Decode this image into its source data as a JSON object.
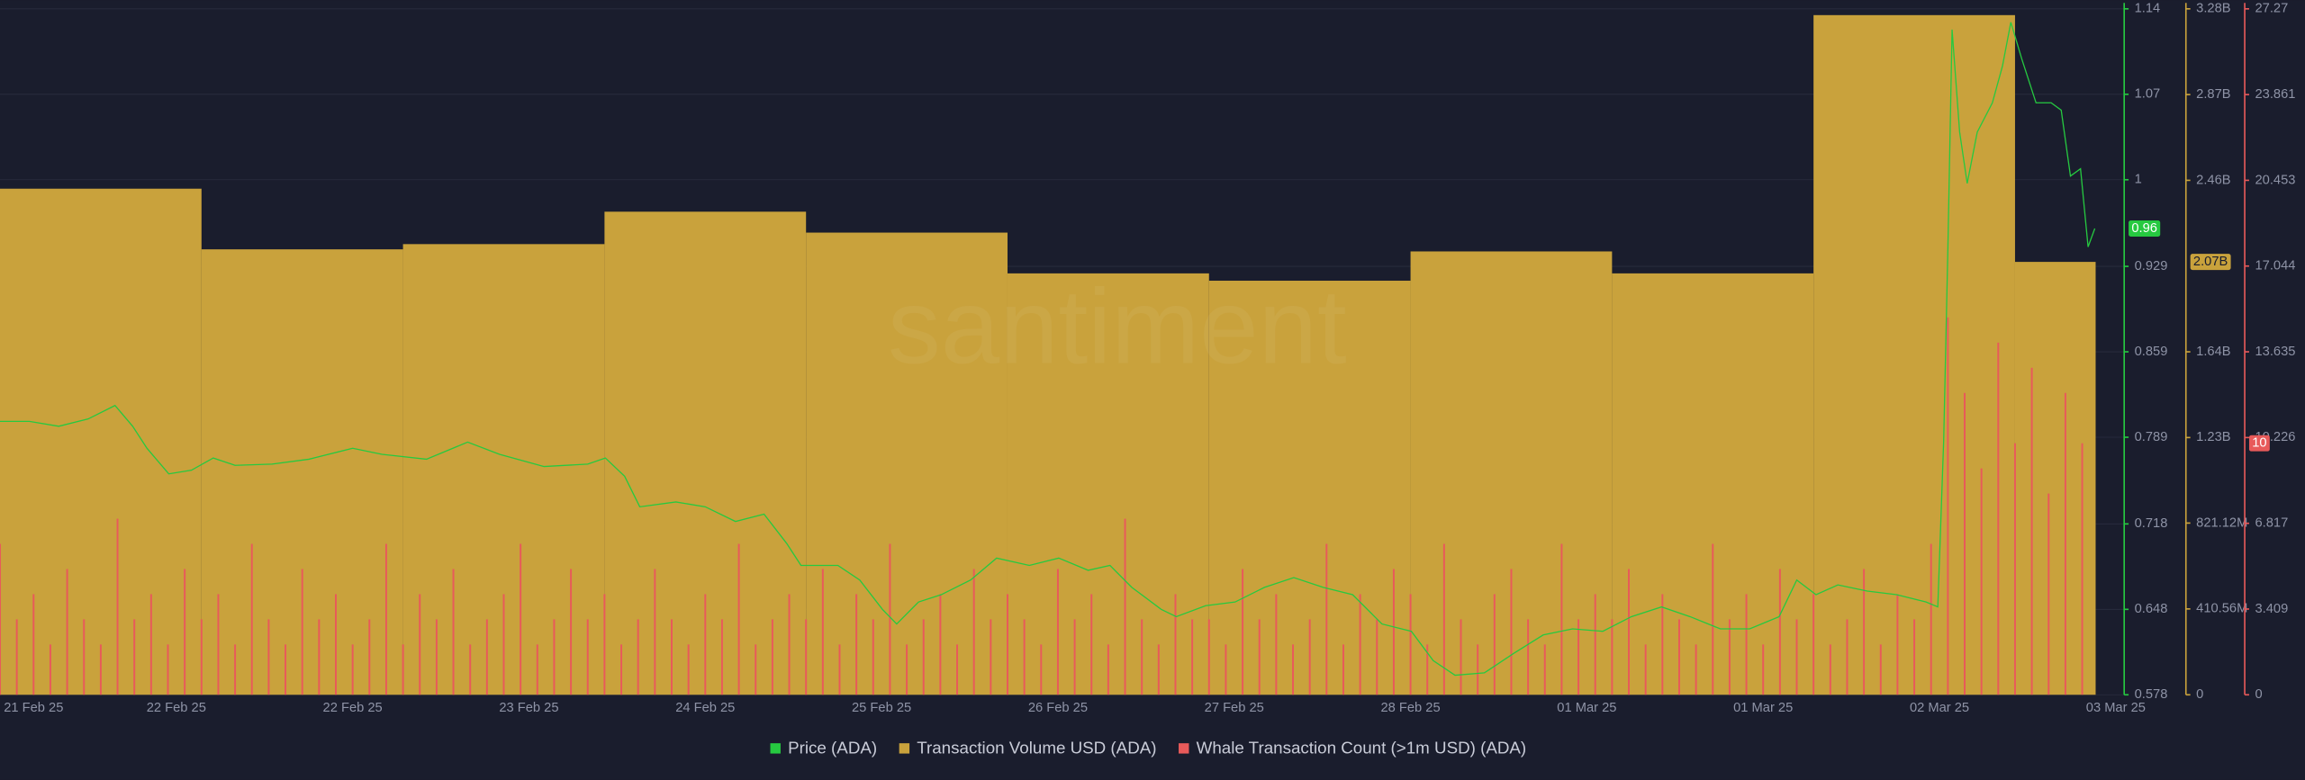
{
  "chart_data": {
    "type": "combo",
    "watermark": "santiment",
    "xlim": [
      0,
      253
    ],
    "xticks": [
      {
        "value": 4,
        "label": "21 Feb 25"
      },
      {
        "value": 21,
        "label": "22 Feb 25"
      },
      {
        "value": 42,
        "label": "22 Feb 25"
      },
      {
        "value": 63,
        "label": "23 Feb 25"
      },
      {
        "value": 84,
        "label": "24 Feb 25"
      },
      {
        "value": 105,
        "label": "25 Feb 25"
      },
      {
        "value": 126,
        "label": "26 Feb 25"
      },
      {
        "value": 147,
        "label": "27 Feb 25"
      },
      {
        "value": 168,
        "label": "28 Feb 25"
      },
      {
        "value": 189,
        "label": "01 Mar 25"
      },
      {
        "value": 210,
        "label": "01 Mar 25"
      },
      {
        "value": 231,
        "label": "02 Mar 25"
      },
      {
        "value": 252,
        "label": "03 Mar 25"
      }
    ],
    "ylim": [
      0.578,
      1.14
    ],
    "yticks": [
      0.578,
      0.648,
      0.718,
      0.789,
      0.859,
      0.929,
      1,
      1.07,
      1.14
    ],
    "y2lim": [
      0,
      3280000000
    ],
    "y2ticks": [
      0,
      {
        "value": 410560000,
        "label": "410.56M"
      },
      {
        "value": 821120000,
        "label": "821.12M"
      },
      {
        "value": 1230000000,
        "label": "1.23B"
      },
      {
        "value": 1640000000,
        "label": "1.64B"
      },
      {
        "value": 2460000000,
        "label": "2.46B"
      },
      {
        "value": 2870000000,
        "label": "2.87B"
      },
      {
        "value": 3280000000,
        "label": "3.28B"
      }
    ],
    "y3lim": [
      0,
      27.27
    ],
    "y3ticks": [
      0,
      3.409,
      6.817,
      10.226,
      13.635,
      17.044,
      20.453,
      23.861,
      27.27
    ],
    "grid": true,
    "series": [
      {
        "name": "Transaction Volume USD (ADA)",
        "type": "histogram",
        "axis": "y2",
        "color": "#c9a23c",
        "bins": [
          0,
          24,
          48,
          72,
          96,
          120,
          144,
          168,
          192,
          216,
          240,
          249.6
        ],
        "values": [
          2420000000,
          2130000000,
          2155000000,
          2310000000,
          2210000000,
          2015000000,
          1980000000,
          2120000000,
          2015000000,
          3250000000,
          2070000000
        ],
        "current": {
          "value": 2070000000,
          "label": "2.07B"
        }
      },
      {
        "name": "Whale Transaction Count (>1m USD) (ADA)",
        "type": "bar",
        "axis": "y3",
        "color": "#e85a5a",
        "x": [
          0,
          2,
          4,
          6,
          8,
          10,
          12,
          14,
          16,
          18,
          20,
          22,
          24,
          26,
          28,
          30,
          32,
          34,
          36,
          38,
          40,
          42,
          44,
          46,
          48,
          50,
          52,
          54,
          56,
          58,
          60,
          62,
          64,
          66,
          68,
          70,
          72,
          74,
          76,
          78,
          80,
          82,
          84,
          86,
          88,
          90,
          92,
          94,
          96,
          98,
          100,
          102,
          104,
          106,
          108,
          110,
          112,
          114,
          116,
          118,
          120,
          122,
          124,
          126,
          128,
          130,
          132,
          134,
          136,
          138,
          140,
          142,
          144,
          146,
          148,
          150,
          152,
          154,
          156,
          158,
          160,
          162,
          164,
          166,
          168,
          170,
          172,
          174,
          176,
          178,
          180,
          182,
          184,
          186,
          188,
          190,
          192,
          194,
          196,
          198,
          200,
          202,
          204,
          206,
          208,
          210,
          212,
          214,
          216,
          218,
          220,
          222,
          224,
          226,
          228,
          230,
          232,
          234,
          236,
          238,
          240,
          242,
          244,
          246,
          248
        ],
        "values": [
          6,
          3,
          4,
          2,
          5,
          3,
          2,
          7,
          3,
          4,
          2,
          5,
          3,
          4,
          2,
          6,
          3,
          2,
          5,
          3,
          4,
          2,
          3,
          6,
          2,
          4,
          3,
          5,
          2,
          3,
          4,
          6,
          2,
          3,
          5,
          3,
          4,
          2,
          3,
          5,
          3,
          2,
          4,
          3,
          6,
          2,
          3,
          4,
          3,
          5,
          2,
          4,
          3,
          6,
          2,
          3,
          4,
          2,
          5,
          3,
          4,
          3,
          2,
          5,
          3,
          4,
          2,
          7,
          3,
          2,
          4,
          3,
          3,
          2,
          5,
          3,
          4,
          2,
          3,
          6,
          2,
          4,
          3,
          5,
          4,
          2,
          6,
          3,
          2,
          4,
          5,
          3,
          2,
          6,
          3,
          4,
          3,
          5,
          2,
          4,
          3,
          2,
          6,
          3,
          4,
          2,
          5,
          3,
          4,
          2,
          3,
          5,
          2,
          4,
          3,
          6,
          15,
          12,
          9,
          14,
          10,
          13,
          8,
          12,
          10
        ],
        "current": 10
      },
      {
        "name": "Price (ADA)",
        "type": "line",
        "axis": "y",
        "color": "#26c940",
        "x": [
          0,
          3.5,
          7,
          10.5,
          13.7,
          15.8,
          17.5,
          20.1,
          22.8,
          25.4,
          28,
          32.4,
          36.8,
          42,
          45.5,
          50.8,
          55.7,
          59.5,
          64.8,
          70,
          72.1,
          74.4,
          76.2,
          80.5,
          84,
          87.6,
          91,
          93.7,
          95.4,
          99.8,
          102.4,
          105.1,
          106.8,
          109.4,
          112.1,
          115.6,
          118.7,
          122.6,
          126.1,
          129.6,
          132.2,
          134.8,
          138.3,
          140.1,
          143.6,
          147.1,
          150.6,
          154.1,
          157.6,
          161.1,
          164.6,
          168.1,
          170.7,
          173.3,
          176.8,
          180.3,
          183.8,
          187.3,
          190.9,
          194.3,
          197.9,
          201.3,
          204.9,
          208.4,
          211.9,
          214,
          216.3,
          218.9,
          222.4,
          225.9,
          229.4,
          230.8,
          231.5,
          232,
          232.5,
          233.4,
          234.3,
          235.5,
          237.3,
          238.5,
          239.5,
          240.8,
          242.5,
          244.3,
          245.5,
          246.6,
          247.8,
          248.7,
          249.5
        ],
        "values": [
          0.802,
          0.802,
          0.798,
          0.804,
          0.815,
          0.798,
          0.78,
          0.759,
          0.762,
          0.772,
          0.766,
          0.767,
          0.771,
          0.78,
          0.775,
          0.771,
          0.785,
          0.775,
          0.765,
          0.767,
          0.772,
          0.757,
          0.732,
          0.736,
          0.732,
          0.72,
          0.726,
          0.702,
          0.684,
          0.684,
          0.672,
          0.648,
          0.636,
          0.654,
          0.66,
          0.672,
          0.69,
          0.684,
          0.69,
          0.68,
          0.684,
          0.666,
          0.648,
          0.642,
          0.651,
          0.654,
          0.666,
          0.674,
          0.666,
          0.66,
          0.636,
          0.63,
          0.606,
          0.594,
          0.596,
          0.612,
          0.627,
          0.632,
          0.63,
          0.642,
          0.65,
          0.642,
          0.632,
          0.632,
          0.642,
          0.672,
          0.66,
          0.668,
          0.663,
          0.66,
          0.654,
          0.65,
          0.786,
          0.943,
          1.123,
          1.039,
          0.997,
          1.039,
          1.063,
          1.093,
          1.129,
          1.099,
          1.063,
          1.063,
          1.057,
          1.003,
          1.009,
          0.945,
          0.96
        ],
        "current": 0.96
      }
    ],
    "legend": [
      2,
      0,
      1
    ]
  }
}
